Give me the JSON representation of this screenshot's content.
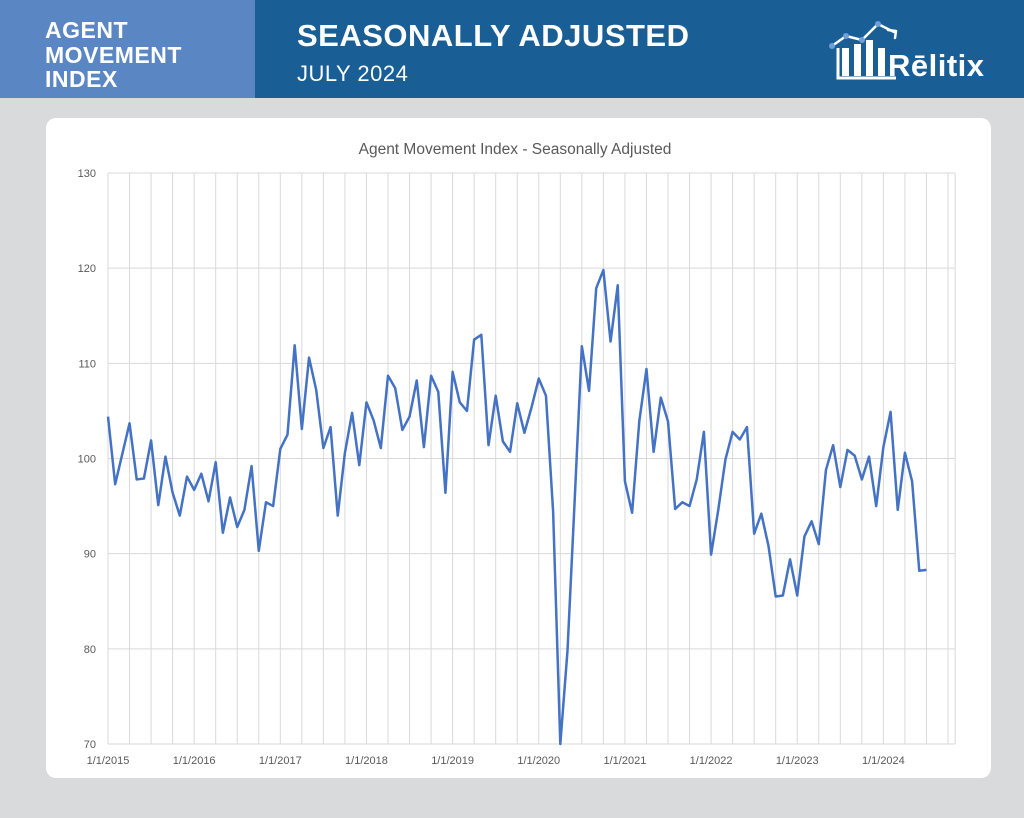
{
  "header": {
    "index_title_lines": [
      "AGENT",
      "MOVEMENT",
      "INDEX"
    ],
    "main_title": "SEASONALLY ADJUSTED",
    "subtitle": "JULY 2024",
    "logo_text": "Rēlitix"
  },
  "colors": {
    "header_bg": "#1a5e96",
    "header_left_bg": "#5a86c4",
    "series_line": "#4472c4",
    "grid": "#d9d9d9"
  },
  "chart_data": {
    "type": "line",
    "title": "Agent Movement Index - Seasonally Adjusted",
    "xlabel": "",
    "ylabel": "",
    "ylim": [
      70,
      130
    ],
    "yticks": [
      70,
      80,
      90,
      100,
      110,
      120,
      130
    ],
    "start_month": "2015-01",
    "xtick_labels": [
      "1/1/2015",
      "1/1/2016",
      "1/1/2017",
      "1/1/2018",
      "1/1/2019",
      "1/1/2020",
      "1/1/2021",
      "1/1/2022",
      "1/1/2023",
      "1/1/2024"
    ],
    "grid": true,
    "legend": "none",
    "series": [
      {
        "name": "Agent Movement Index - Seasonally Adjusted",
        "values": [
          104.4,
          97.3,
          100.5,
          103.7,
          97.8,
          97.9,
          101.9,
          95.1,
          100.2,
          96.4,
          94.0,
          98.1,
          96.7,
          98.4,
          95.5,
          99.6,
          92.2,
          95.9,
          92.8,
          94.6,
          99.2,
          90.3,
          95.4,
          95.0,
          101.0,
          102.5,
          111.9,
          103.1,
          110.6,
          107.2,
          101.1,
          103.3,
          94.0,
          100.6,
          104.8,
          99.3,
          105.9,
          104.0,
          101.1,
          108.7,
          107.4,
          103.0,
          104.4,
          108.2,
          101.2,
          108.7,
          107.0,
          96.4,
          109.1,
          105.9,
          105.0,
          112.5,
          113.0,
          101.4,
          106.6,
          101.8,
          100.7,
          105.8,
          102.7,
          105.4,
          108.4,
          106.6,
          94.4,
          70.0,
          79.8,
          95.6,
          111.8,
          107.1,
          117.9,
          119.8,
          112.3,
          118.2,
          97.6,
          94.3,
          103.9,
          109.4,
          100.7,
          106.4,
          103.9,
          94.7,
          95.4,
          95.0,
          97.8,
          102.8,
          89.9,
          94.6,
          99.9,
          102.8,
          102.0,
          103.3,
          92.1,
          94.2,
          90.8,
          85.5,
          85.6,
          89.4,
          85.6,
          91.8,
          93.4,
          91.0,
          98.8,
          101.4,
          97.0,
          100.9,
          100.3,
          97.8,
          100.2,
          95.0,
          101.2,
          104.9,
          94.6,
          100.6,
          97.6,
          88.2,
          88.3
        ]
      }
    ]
  }
}
